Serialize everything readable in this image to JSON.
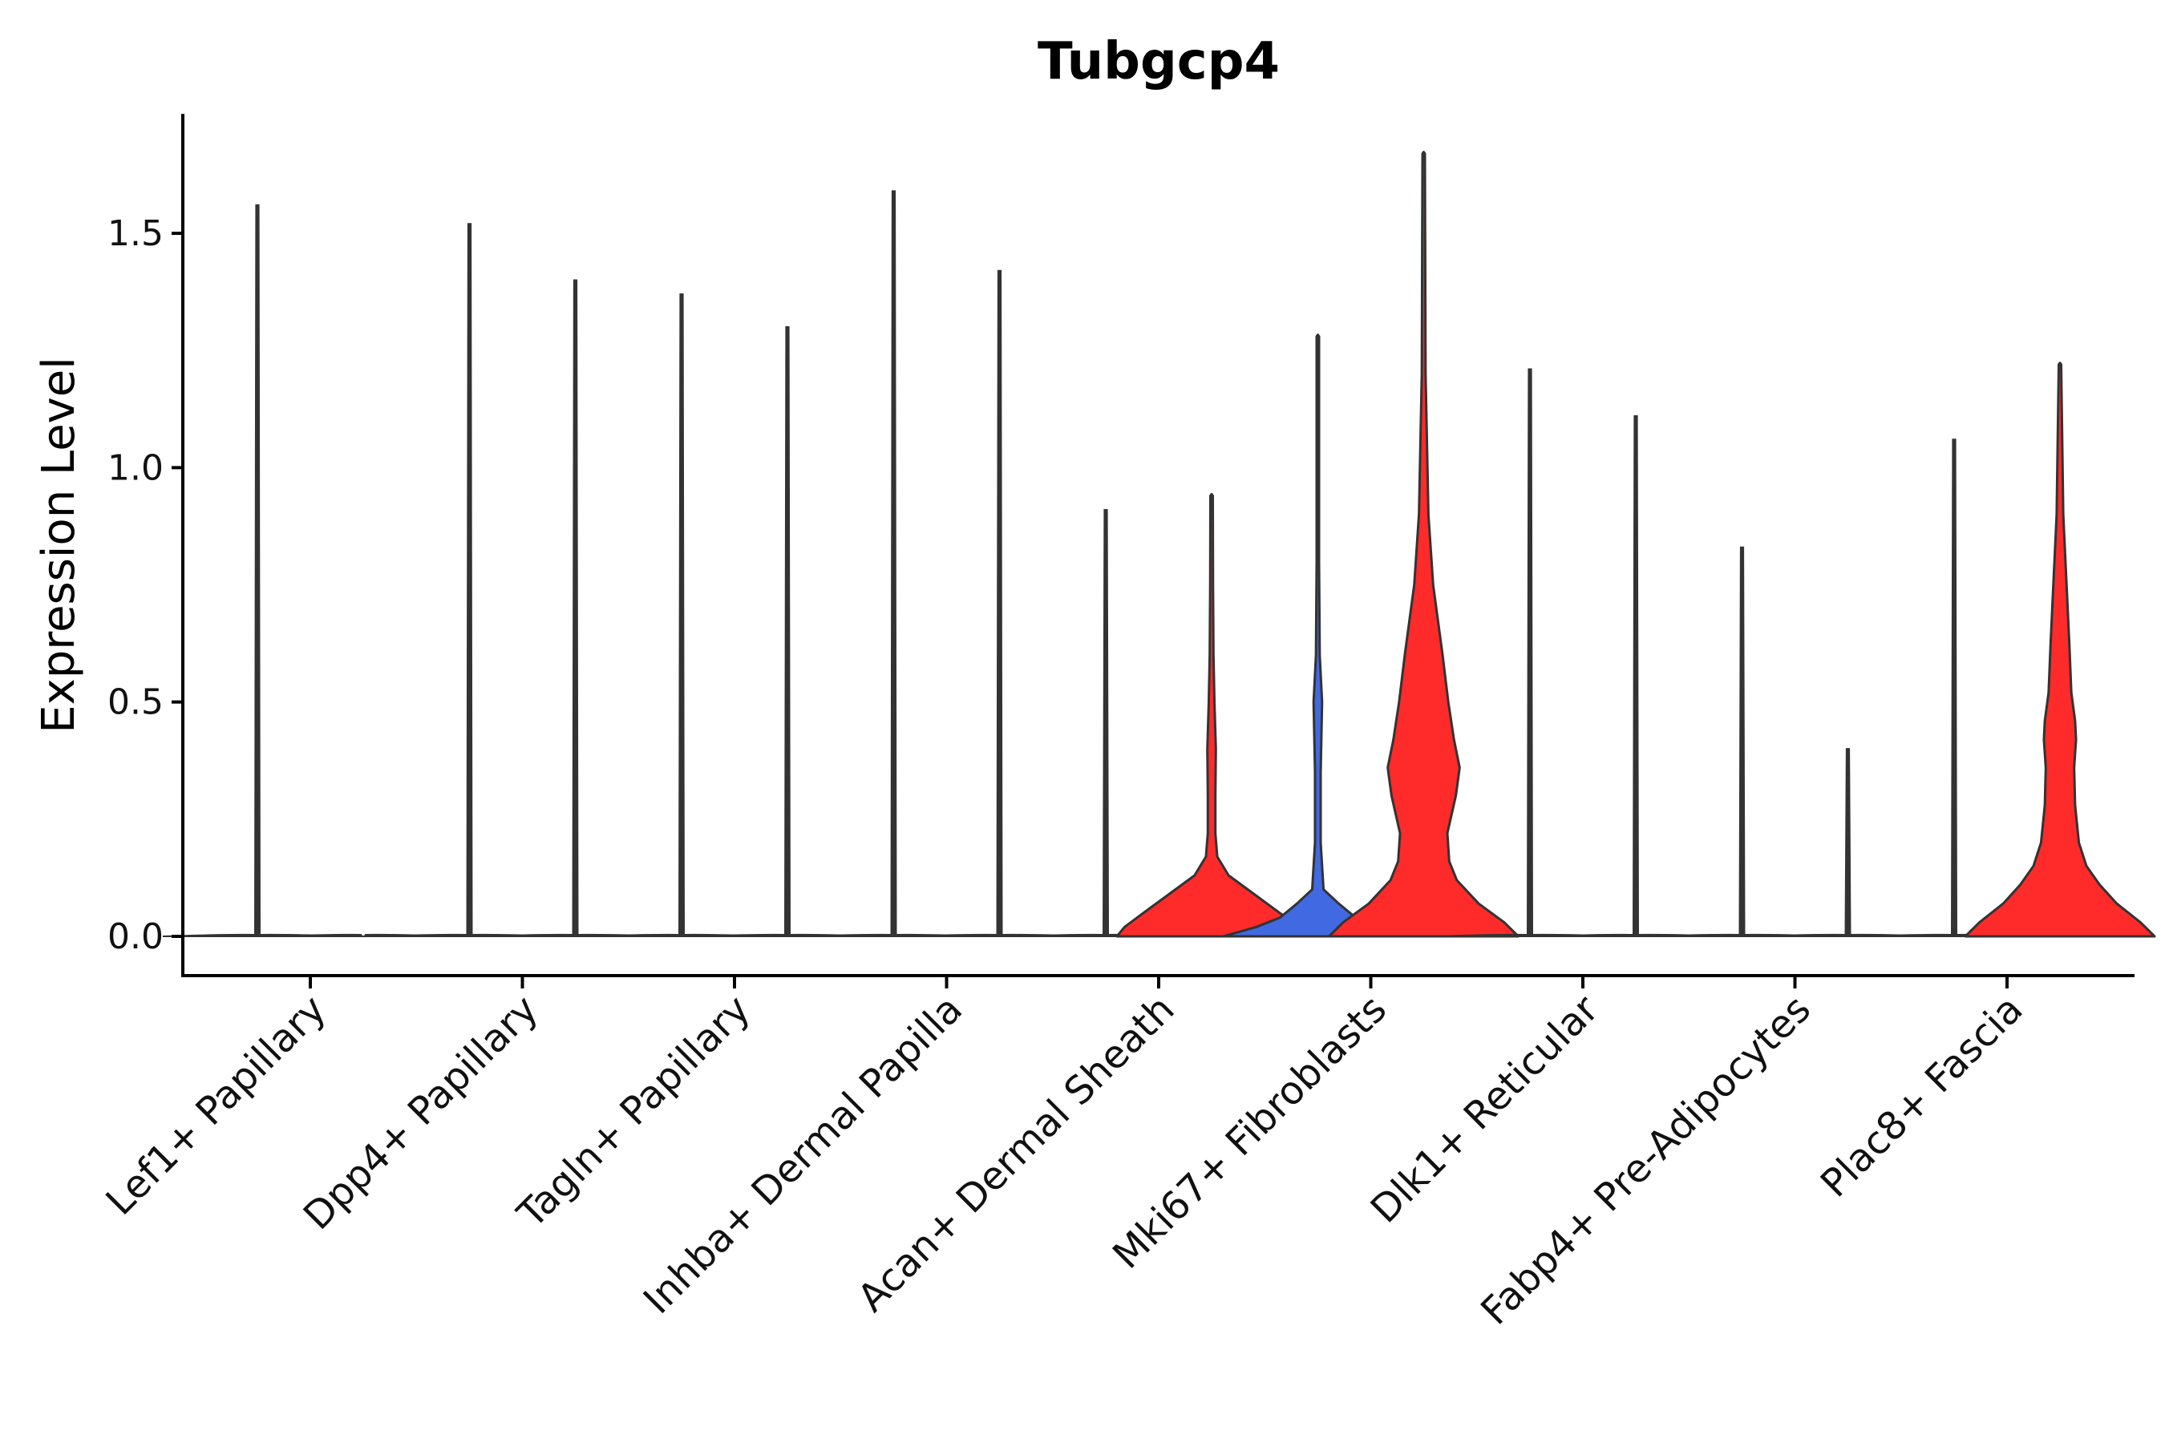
{
  "chart_data": {
    "type": "violin",
    "title": "Tubgcp4",
    "xlabel": "",
    "ylabel": "Expression Level",
    "ylim": [
      -0.085,
      1.75
    ],
    "yticks": [
      "0.0",
      "0.5",
      "1.0",
      "1.5"
    ],
    "ytick_values": [
      0,
      0.5,
      1.0,
      1.5
    ],
    "grid": false,
    "legend": "none",
    "colors": {
      "red": "#FF2A2A",
      "blue": "#4169E1",
      "outline": "#333333",
      "axis": "#000000"
    },
    "categories": [
      "Lef1+ Papillary",
      "Dpp4+ Papillary",
      "Tagln+ Papillary",
      "Inhba+ Dermal Papilla",
      "Acan+ Dermal Sheath",
      "Mki67+ Fibroblasts",
      "Dlk1+ Reticular",
      "Fabp4+ Pre-Adipocytes",
      "Plac8+ Fascia"
    ],
    "violins": [
      {
        "category": "Lef1+ Papillary",
        "side": "left",
        "fill": "none",
        "max": 1.56
      },
      {
        "category": "Lef1+ Papillary",
        "side": "right",
        "fill": "none",
        "max": 0.0
      },
      {
        "category": "Dpp4+ Papillary",
        "side": "left",
        "fill": "none",
        "max": 1.52
      },
      {
        "category": "Dpp4+ Papillary",
        "side": "right",
        "fill": "none",
        "max": 1.4
      },
      {
        "category": "Tagln+ Papillary",
        "side": "left",
        "fill": "none",
        "max": 1.37
      },
      {
        "category": "Tagln+ Papillary",
        "side": "right",
        "fill": "none",
        "max": 1.3
      },
      {
        "category": "Inhba+ Dermal Papilla",
        "side": "left",
        "fill": "none",
        "max": 1.59
      },
      {
        "category": "Inhba+ Dermal Papilla",
        "side": "right",
        "fill": "none",
        "max": 1.42
      },
      {
        "category": "Acan+ Dermal Sheath",
        "side": "left",
        "fill": "none",
        "max": 0.91
      },
      {
        "category": "Acan+ Dermal Sheath",
        "side": "right",
        "fill": "red",
        "max": 0.94,
        "density": [
          [
            0,
            1.0
          ],
          [
            0.02,
            0.92
          ],
          [
            0.05,
            0.72
          ],
          [
            0.09,
            0.45
          ],
          [
            0.13,
            0.18
          ],
          [
            0.17,
            0.06
          ],
          [
            0.22,
            0.04
          ],
          [
            0.3,
            0.04
          ],
          [
            0.4,
            0.045
          ],
          [
            0.5,
            0.03
          ],
          [
            0.6,
            0.02
          ],
          [
            0.75,
            0.015
          ],
          [
            0.94,
            0.01
          ]
        ]
      },
      {
        "category": "Mki67+ Fibroblasts",
        "side": "left",
        "fill": "blue",
        "max": 1.28,
        "density": [
          [
            0,
            1.0
          ],
          [
            0.02,
            0.65
          ],
          [
            0.04,
            0.4
          ],
          [
            0.07,
            0.22
          ],
          [
            0.1,
            0.06
          ],
          [
            0.2,
            0.03
          ],
          [
            0.35,
            0.03
          ],
          [
            0.45,
            0.04
          ],
          [
            0.5,
            0.045
          ],
          [
            0.6,
            0.02
          ],
          [
            0.8,
            0.012
          ],
          [
            1.28,
            0.005
          ]
        ]
      },
      {
        "category": "Mki67+ Fibroblasts",
        "side": "right",
        "fill": "red",
        "max": 1.67,
        "density": [
          [
            0,
            1.0
          ],
          [
            0.03,
            0.85
          ],
          [
            0.07,
            0.58
          ],
          [
            0.12,
            0.35
          ],
          [
            0.16,
            0.27
          ],
          [
            0.22,
            0.25
          ],
          [
            0.3,
            0.34
          ],
          [
            0.36,
            0.38
          ],
          [
            0.42,
            0.32
          ],
          [
            0.5,
            0.26
          ],
          [
            0.6,
            0.2
          ],
          [
            0.75,
            0.1
          ],
          [
            0.9,
            0.05
          ],
          [
            1.2,
            0.02
          ],
          [
            1.67,
            0.005
          ]
        ]
      },
      {
        "category": "Dlk1+ Reticular",
        "side": "left",
        "fill": "none",
        "max": 1.21
      },
      {
        "category": "Dlk1+ Reticular",
        "side": "right",
        "fill": "none",
        "max": 1.11
      },
      {
        "category": "Fabp4+ Pre-Adipocytes",
        "side": "left",
        "fill": "none",
        "max": 0.83
      },
      {
        "category": "Fabp4+ Pre-Adipocytes",
        "side": "right",
        "fill": "none",
        "max": 0.4
      },
      {
        "category": "Plac8+ Fascia",
        "side": "left",
        "fill": "none",
        "max": 1.06
      },
      {
        "category": "Plac8+ Fascia",
        "side": "right",
        "fill": "red",
        "max": 1.22,
        "density": [
          [
            0,
            1.0
          ],
          [
            0.03,
            0.85
          ],
          [
            0.07,
            0.6
          ],
          [
            0.11,
            0.42
          ],
          [
            0.15,
            0.28
          ],
          [
            0.2,
            0.2
          ],
          [
            0.28,
            0.16
          ],
          [
            0.36,
            0.15
          ],
          [
            0.42,
            0.17
          ],
          [
            0.46,
            0.16
          ],
          [
            0.52,
            0.12
          ],
          [
            0.62,
            0.1
          ],
          [
            0.75,
            0.07
          ],
          [
            0.9,
            0.035
          ],
          [
            1.22,
            0.01
          ]
        ]
      }
    ]
  }
}
